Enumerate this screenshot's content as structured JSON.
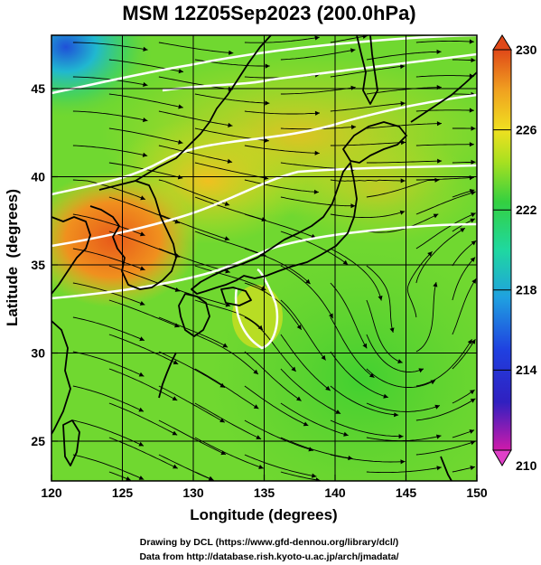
{
  "title": "MSM 12Z05Sep2023 (200.0hPa)",
  "x_axis": {
    "label": "Longitude (degrees)",
    "range": [
      120,
      150
    ],
    "ticks": [
      "120",
      "125",
      "130",
      "135",
      "140",
      "145",
      "150"
    ]
  },
  "y_axis": {
    "label": "Latitude  (degrees)",
    "range": [
      22.4,
      47.6
    ],
    "ticks": [
      "25",
      "30",
      "35",
      "40",
      "45"
    ]
  },
  "colorbar": {
    "range": [
      210,
      230
    ],
    "ticks": [
      "210",
      "214",
      "218",
      "222",
      "226",
      "230"
    ],
    "colors": [
      "#d01aaa",
      "#1f2fd0",
      "#1fa0e0",
      "#1fd8a0",
      "#34d040",
      "#a8e020",
      "#f0e020",
      "#f0a020",
      "#e04818"
    ]
  },
  "map_features": {
    "gridlines": true,
    "coastlines": true,
    "temperature_contours": "white",
    "streamlines": "black"
  },
  "credits": {
    "line1": "Drawing by DCL (https://www.gfd-dennou.org/library/dcl/)",
    "line2": "Data from http://database.rish.kyoto-u.ac.jp/arch/jmadata/"
  }
}
